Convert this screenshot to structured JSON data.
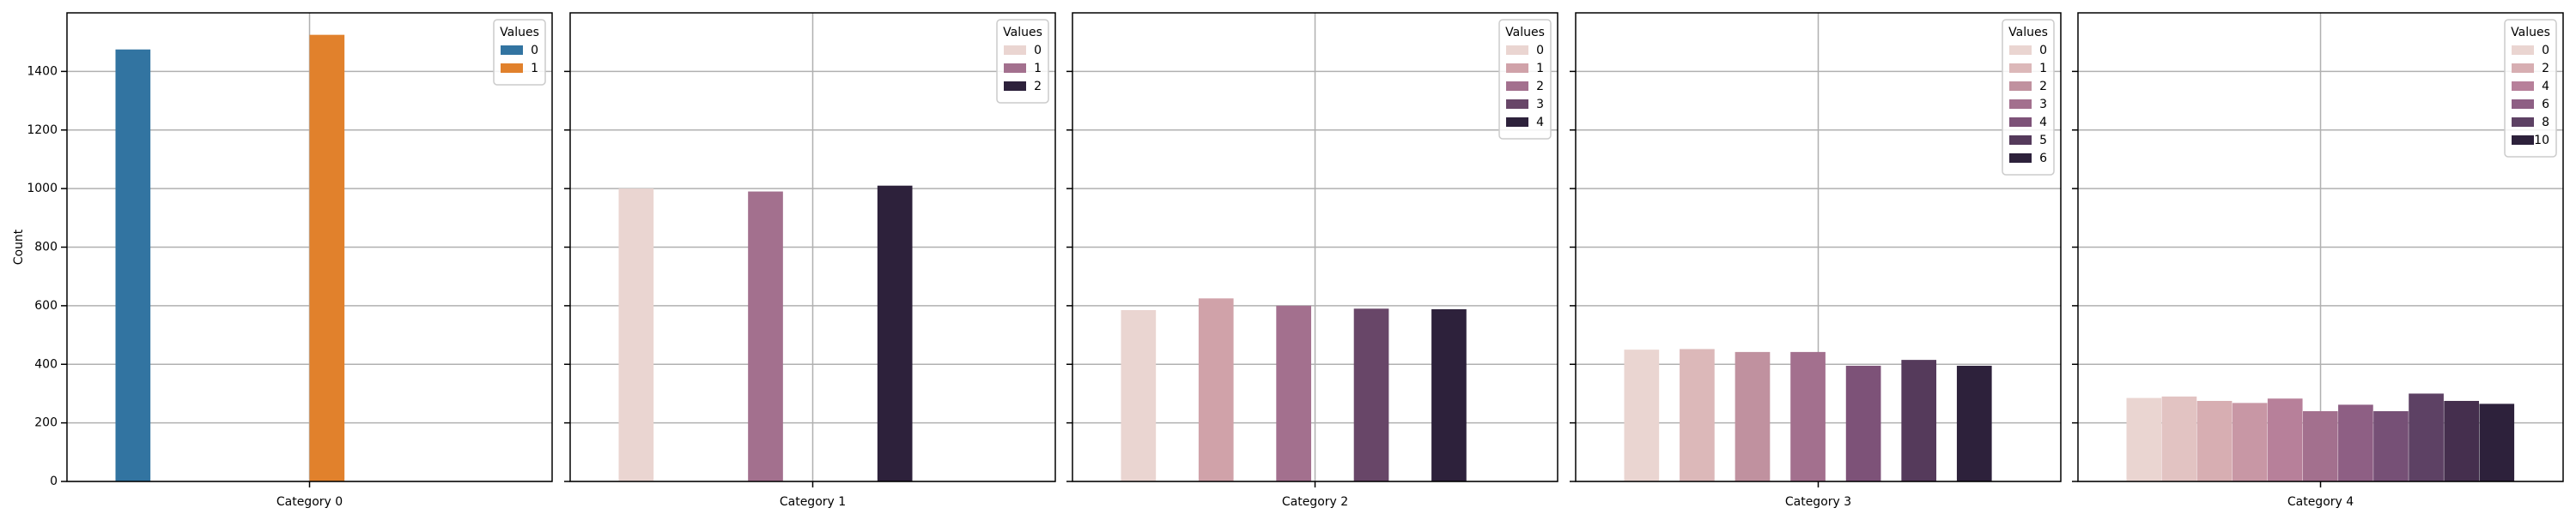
{
  "chart_data": [
    {
      "type": "bar",
      "ylabel": "Count",
      "categories": [
        "Category 0"
      ],
      "ylim": [
        0,
        1600
      ],
      "yticks": [
        0,
        200,
        400,
        600,
        800,
        1000,
        1200,
        1400
      ],
      "grid": true,
      "legend_title": "Values",
      "legend": "upper right",
      "series": [
        {
          "name": "0",
          "color": "#3274a1",
          "values": [
            1475
          ]
        },
        {
          "name": "1",
          "color": "#e1812c",
          "values": [
            1525
          ]
        }
      ]
    },
    {
      "type": "bar",
      "categories": [
        "Category 1"
      ],
      "ylim": [
        0,
        1600
      ],
      "yticks": [
        0,
        200,
        400,
        600,
        800,
        1000,
        1200,
        1400
      ],
      "grid": true,
      "legend_title": "Values",
      "legend": "upper right",
      "series": [
        {
          "name": "0",
          "color": "#ead5d1",
          "values": [
            1000
          ]
        },
        {
          "name": "1",
          "color": "#a3708e",
          "values": [
            990
          ]
        },
        {
          "name": "2",
          "color": "#2d213b",
          "values": [
            1010
          ]
        }
      ]
    },
    {
      "type": "bar",
      "categories": [
        "Category 2"
      ],
      "ylim": [
        0,
        1600
      ],
      "yticks": [
        0,
        200,
        400,
        600,
        800,
        1000,
        1200,
        1400
      ],
      "grid": true,
      "legend_title": "Values",
      "legend": "upper right",
      "series": [
        {
          "name": "0",
          "color": "#ead5d1",
          "values": [
            585
          ]
        },
        {
          "name": "1",
          "color": "#d0a2a9",
          "values": [
            625
          ]
        },
        {
          "name": "2",
          "color": "#a3708e",
          "values": [
            600
          ]
        },
        {
          "name": "3",
          "color": "#684668",
          "values": [
            590
          ]
        },
        {
          "name": "4",
          "color": "#2d213b",
          "values": [
            588
          ]
        }
      ]
    },
    {
      "type": "bar",
      "categories": [
        "Category 3"
      ],
      "ylim": [
        0,
        1600
      ],
      "yticks": [
        0,
        200,
        400,
        600,
        800,
        1000,
        1200,
        1400
      ],
      "grid": true,
      "legend_title": "Values",
      "legend": "upper right",
      "series": [
        {
          "name": "0",
          "color": "#ead5d1",
          "values": [
            450
          ]
        },
        {
          "name": "1",
          "color": "#dcb8b9",
          "values": [
            452
          ]
        },
        {
          "name": "2",
          "color": "#c0919f",
          "values": [
            442
          ]
        },
        {
          "name": "3",
          "color": "#a3708e",
          "values": [
            442
          ]
        },
        {
          "name": "4",
          "color": "#7d5278",
          "values": [
            395
          ]
        },
        {
          "name": "5",
          "color": "#553a5b",
          "values": [
            415
          ]
        },
        {
          "name": "6",
          "color": "#2d213b",
          "values": [
            395
          ]
        }
      ]
    },
    {
      "type": "bar",
      "categories": [
        "Category 4"
      ],
      "ylim": [
        0,
        1600
      ],
      "yticks": [
        0,
        200,
        400,
        600,
        800,
        1000,
        1200,
        1400
      ],
      "grid": true,
      "legend_title": "Values",
      "legend": "upper right",
      "series": [
        {
          "name": "0",
          "color": "#ead5d1",
          "values": [
            285
          ]
        },
        {
          "name": null,
          "color": "#e2c3c2",
          "values": [
            290
          ]
        },
        {
          "name": "2",
          "color": "#d7aeb2",
          "values": [
            275
          ]
        },
        {
          "name": null,
          "color": "#c897a5",
          "values": [
            268
          ]
        },
        {
          "name": "4",
          "color": "#b7809a",
          "values": [
            283
          ]
        },
        {
          "name": null,
          "color": "#a3708e",
          "values": [
            240
          ]
        },
        {
          "name": "6",
          "color": "#8e5f84",
          "values": [
            262
          ]
        },
        {
          "name": null,
          "color": "#765076",
          "values": [
            240
          ]
        },
        {
          "name": "8",
          "color": "#5d4164",
          "values": [
            300
          ]
        },
        {
          "name": null,
          "color": "#452f4e",
          "values": [
            275
          ]
        },
        {
          "name": "10",
          "color": "#2d213b",
          "values": [
            265
          ]
        }
      ]
    }
  ]
}
